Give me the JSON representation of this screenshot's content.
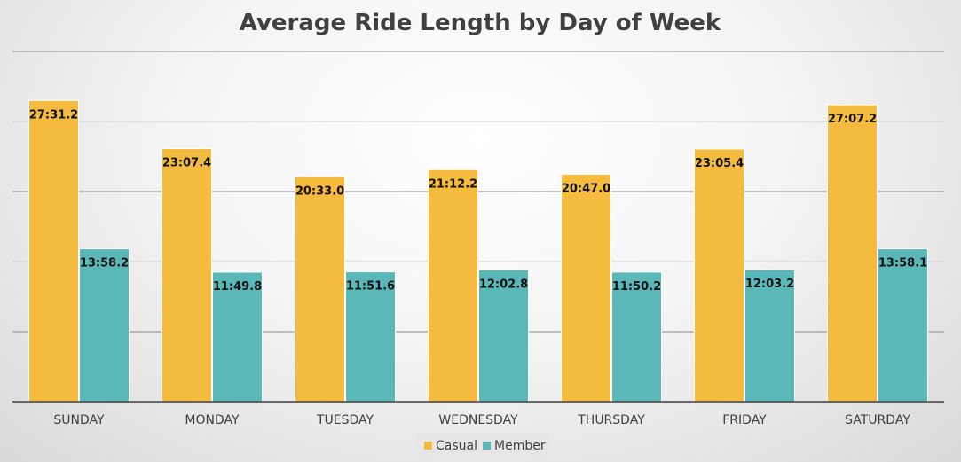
{
  "chart_data": {
    "type": "bar",
    "title": "Average Ride Length by Day of Week",
    "categories": [
      "SUNDAY",
      "MONDAY",
      "TUESDAY",
      "WEDNESDAY",
      "THURSDAY",
      "FRIDAY",
      "SATURDAY"
    ],
    "series": [
      {
        "name": "Casual",
        "color": "#F4BB3F",
        "values_seconds": [
          1651.2,
          1387.4,
          1233.0,
          1272.2,
          1247.0,
          1385.4,
          1627.2
        ],
        "labels": [
          "27:31.2",
          "23:07.4",
          "20:33.0",
          "21:12.2",
          "20:47.0",
          "23:05.4",
          "27:07.2"
        ]
      },
      {
        "name": "Member",
        "color": "#5BB8B9",
        "values_seconds": [
          838.2,
          709.8,
          711.6,
          722.8,
          710.2,
          723.2,
          838.1
        ],
        "labels": [
          "13:58.2",
          "11:49.8",
          "11:51.6",
          "12:02.8",
          "11:50.2",
          "12:03.2",
          "13:58.1"
        ]
      }
    ],
    "ylim": [
      0,
      1920
    ],
    "yticks_seconds": [
      0,
      384,
      768,
      1152,
      1536,
      1920
    ],
    "y_tick_labels_visible": false,
    "grid": true,
    "legend_position": "bottom",
    "data_labels": "inside-end"
  }
}
